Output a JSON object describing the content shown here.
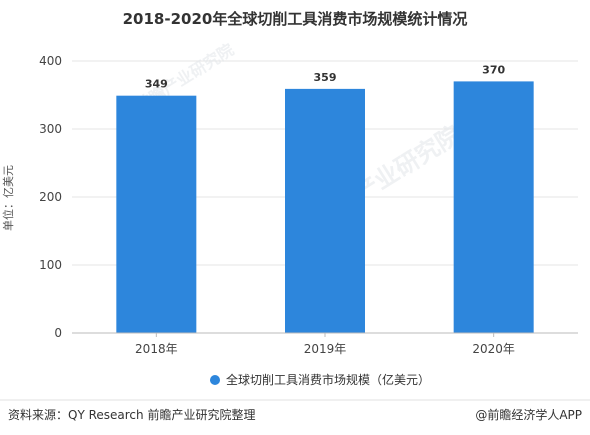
{
  "chart_data": {
    "type": "bar",
    "title": "2018-2020年全球切削工具消费市场规模统计情况",
    "categories": [
      "2018年",
      "2019年",
      "2020年"
    ],
    "series": [
      {
        "name": "全球切削工具消费市场规模（亿美元）",
        "values": [
          349,
          359,
          370
        ]
      }
    ],
    "ylabel": "单位：亿美元",
    "xlabel": "",
    "ylim": [
      0,
      400
    ],
    "yticks": [
      0,
      100,
      200,
      300,
      400
    ],
    "grid": true,
    "legend": "bottom",
    "bar_color": "#2d86dc"
  },
  "watermark": {
    "text": "前瞻产业研究院"
  },
  "footer": {
    "source": "资料来源：QY Research 前瞻产业研究院整理",
    "brand": "@前瞻经济学人APP"
  }
}
